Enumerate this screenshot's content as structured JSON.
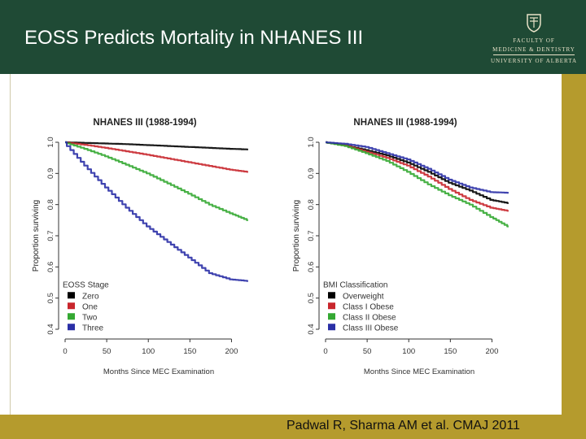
{
  "slide": {
    "title": "EOSS Predicts Mortality in NHANES III",
    "citation": "Padwal R, Sharma AM  et al. CMAJ 2011",
    "logo": {
      "line1": "FACULTY OF",
      "line2": "MEDICINE & DENTISTRY",
      "line3": "UNIVERSITY OF ALBERTA"
    },
    "colors": {
      "header": "#1f4a35",
      "accent_bar": "#b59b2d",
      "title_text": "#ffffff"
    }
  },
  "chart_data": [
    {
      "type": "line",
      "title": "NHANES III (1988-1994)",
      "xlabel": "Months Since MEC Examination",
      "ylabel": "Proportion surviving",
      "xlim": [
        0,
        225
      ],
      "ylim": [
        0.4,
        1.0
      ],
      "x_ticks": [
        "0",
        "50",
        "100",
        "150",
        "200"
      ],
      "y_ticks": [
        "0.4",
        "0.5",
        "0.6",
        "0.7",
        "0.8",
        "0.9",
        "1.0"
      ],
      "legend_title": "EOSS Stage",
      "legend_position": "bottom-left",
      "x": [
        0,
        25,
        50,
        75,
        100,
        125,
        150,
        175,
        200,
        220
      ],
      "series": [
        {
          "name": "Zero",
          "color": "#000000",
          "values": [
            1.0,
            0.998,
            0.996,
            0.994,
            0.991,
            0.988,
            0.985,
            0.982,
            0.979,
            0.977
          ]
        },
        {
          "name": "One",
          "color": "#c8262c",
          "values": [
            1.0,
            0.992,
            0.982,
            0.971,
            0.96,
            0.948,
            0.936,
            0.924,
            0.912,
            0.905
          ]
        },
        {
          "name": "Two",
          "color": "#34a832",
          "values": [
            1.0,
            0.979,
            0.955,
            0.928,
            0.9,
            0.868,
            0.835,
            0.8,
            0.772,
            0.75
          ]
        },
        {
          "name": "Three",
          "color": "#2a2fa6",
          "values": [
            1.0,
            0.925,
            0.855,
            0.79,
            0.73,
            0.68,
            0.63,
            0.58,
            0.56,
            0.555
          ]
        }
      ]
    },
    {
      "type": "line",
      "title": "NHANES III (1988-1994)",
      "xlabel": "Months Since MEC Examination",
      "ylabel": "Proportion surviving",
      "xlim": [
        0,
        225
      ],
      "ylim": [
        0.4,
        1.0
      ],
      "x_ticks": [
        "0",
        "50",
        "100",
        "150",
        "200"
      ],
      "y_ticks": [
        "0.4",
        "0.5",
        "0.6",
        "0.7",
        "0.8",
        "0.9",
        "1.0"
      ],
      "legend_title": "BMI Classification",
      "legend_position": "bottom-left",
      "x": [
        0,
        25,
        50,
        75,
        100,
        125,
        150,
        175,
        200,
        220
      ],
      "series": [
        {
          "name": "Overweight",
          "color": "#000000",
          "values": [
            1.0,
            0.99,
            0.975,
            0.958,
            0.935,
            0.905,
            0.87,
            0.845,
            0.815,
            0.805
          ]
        },
        {
          "name": "Class I Obese",
          "color": "#c8262c",
          "values": [
            1.0,
            0.99,
            0.97,
            0.95,
            0.925,
            0.89,
            0.85,
            0.815,
            0.79,
            0.78
          ]
        },
        {
          "name": "Class II Obese",
          "color": "#34a832",
          "values": [
            1.0,
            0.988,
            0.965,
            0.94,
            0.905,
            0.865,
            0.83,
            0.8,
            0.76,
            0.73
          ]
        },
        {
          "name": "Class III Obese",
          "color": "#2a2fa6",
          "values": [
            1.0,
            0.995,
            0.985,
            0.965,
            0.945,
            0.915,
            0.88,
            0.855,
            0.84,
            0.838
          ]
        }
      ]
    }
  ]
}
